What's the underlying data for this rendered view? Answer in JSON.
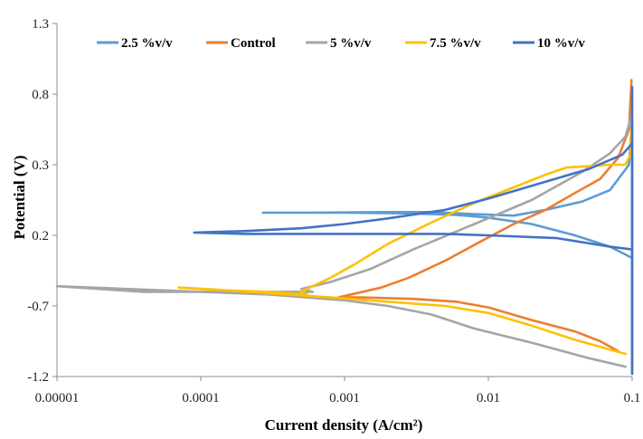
{
  "chart_data": {
    "type": "line",
    "xlabel": "Current density (A/cm²)",
    "ylabel": "Potential (V)",
    "x_scale": "log",
    "xlim": [
      1e-05,
      0.1
    ],
    "ylim": [
      -1.2,
      1.3
    ],
    "x_ticks": [
      1e-05,
      0.0001,
      0.001,
      0.01,
      0.1
    ],
    "x_tick_labels": [
      "0.00001",
      "0.0001",
      "0.001",
      "0.01",
      "0.1"
    ],
    "y_ticks": [
      1.3,
      0.8,
      0.3,
      0.2,
      -0.7,
      -1.2
    ],
    "y_tick_labels": [
      "1.3",
      "0.8",
      "0.3",
      "0.2",
      "-0.7",
      "-1.2"
    ],
    "grid": false,
    "legend_position": "top",
    "series": [
      {
        "name": "2.5 %v/v",
        "color": "#5B9BD5",
        "points": [
          [
            0.1,
            -1.18
          ],
          [
            0.1,
            -0.05
          ],
          [
            0.1,
            0.45
          ],
          [
            0.1,
            0.62
          ],
          [
            0.095,
            0.3
          ],
          [
            0.07,
            0.12
          ],
          [
            0.045,
            0.04
          ],
          [
            0.025,
            -0.02
          ],
          [
            0.015,
            -0.06
          ],
          [
            0.008,
            -0.05
          ],
          [
            0.004,
            -0.035
          ],
          [
            0.002,
            -0.035
          ],
          [
            0.001,
            -0.038
          ],
          [
            0.0005,
            -0.04
          ],
          [
            0.00027,
            -0.04
          ],
          [
            0.001,
            -0.04
          ],
          [
            0.003,
            -0.045
          ],
          [
            0.006,
            -0.055
          ],
          [
            0.01,
            -0.075
          ],
          [
            0.02,
            -0.12
          ],
          [
            0.04,
            -0.2
          ],
          [
            0.07,
            -0.28
          ],
          [
            0.1,
            -0.36
          ]
        ]
      },
      {
        "name": "Control",
        "color": "#ED7D31",
        "points": [
          [
            0.099,
            0.9
          ],
          [
            0.095,
            0.55
          ],
          [
            0.08,
            0.35
          ],
          [
            0.06,
            0.2
          ],
          [
            0.04,
            0.1
          ],
          [
            0.025,
            -0.02
          ],
          [
            0.015,
            -0.12
          ],
          [
            0.009,
            -0.24
          ],
          [
            0.005,
            -0.38
          ],
          [
            0.0028,
            -0.5
          ],
          [
            0.0018,
            -0.57
          ],
          [
            0.0011,
            -0.62
          ],
          [
            0.0009,
            -0.64
          ],
          [
            0.0013,
            -0.64
          ],
          [
            0.003,
            -0.65
          ],
          [
            0.006,
            -0.67
          ],
          [
            0.01,
            -0.71
          ],
          [
            0.02,
            -0.8
          ],
          [
            0.04,
            -0.88
          ],
          [
            0.06,
            -0.95
          ],
          [
            0.08,
            -1.02
          ]
        ]
      },
      {
        "name": "5 %v/v",
        "color": "#A5A5A5",
        "points": [
          [
            0.099,
            0.65
          ],
          [
            0.09,
            0.5
          ],
          [
            0.07,
            0.38
          ],
          [
            0.045,
            0.25
          ],
          [
            0.02,
            0.05
          ],
          [
            0.008,
            -0.12
          ],
          [
            0.003,
            -0.3
          ],
          [
            0.0015,
            -0.44
          ],
          [
            0.0008,
            -0.53
          ],
          [
            0.0005,
            -0.58
          ],
          [
            0.0006,
            -0.6
          ],
          [
            0.0004,
            -0.6
          ],
          [
            0.0002,
            -0.6
          ],
          [
            4e-05,
            -0.6
          ],
          [
            1e-05,
            -0.56
          ],
          [
            0.0001,
            -0.6
          ],
          [
            0.0003,
            -0.62
          ],
          [
            0.001,
            -0.66
          ],
          [
            0.002,
            -0.7
          ],
          [
            0.004,
            -0.76
          ],
          [
            0.008,
            -0.86
          ],
          [
            0.02,
            -0.96
          ],
          [
            0.05,
            -1.07
          ],
          [
            0.09,
            -1.13
          ]
        ]
      },
      {
        "name": "7.5 %v/v",
        "color": "#FFC000",
        "points": [
          [
            0.099,
            0.55
          ],
          [
            0.097,
            0.37
          ],
          [
            0.09,
            0.3
          ],
          [
            0.07,
            0.3
          ],
          [
            0.05,
            0.29
          ],
          [
            0.035,
            0.28
          ],
          [
            0.025,
            0.23
          ],
          [
            0.015,
            0.14
          ],
          [
            0.008,
            0.03
          ],
          [
            0.004,
            -0.11
          ],
          [
            0.002,
            -0.26
          ],
          [
            0.0012,
            -0.4
          ],
          [
            0.0008,
            -0.5
          ],
          [
            0.0006,
            -0.56
          ],
          [
            0.0005,
            -0.6
          ],
          [
            0.00055,
            -0.62
          ],
          [
            0.0003,
            -0.6
          ],
          [
            0.00015,
            -0.59
          ],
          [
            0.0001,
            -0.58
          ],
          [
            7e-05,
            -0.57
          ],
          [
            0.00011,
            -0.58
          ],
          [
            0.0003,
            -0.61
          ],
          [
            0.0008,
            -0.64
          ],
          [
            0.002,
            -0.67
          ],
          [
            0.005,
            -0.7
          ],
          [
            0.01,
            -0.75
          ],
          [
            0.02,
            -0.84
          ],
          [
            0.04,
            -0.94
          ],
          [
            0.09,
            -1.04
          ]
        ]
      },
      {
        "name": "10 %v/v",
        "color": "#4472C4",
        "points": [
          [
            0.1,
            -1.18
          ],
          [
            0.1,
            0.0
          ],
          [
            0.1,
            0.5
          ],
          [
            0.1,
            0.85
          ],
          [
            0.1,
            0.55
          ],
          [
            0.1,
            0.45
          ],
          [
            0.085,
            0.37
          ],
          [
            0.05,
            0.27
          ],
          [
            0.025,
            0.18
          ],
          [
            0.01,
            0.06
          ],
          [
            0.005,
            -0.02
          ],
          [
            0.002,
            -0.08
          ],
          [
            0.001,
            -0.12
          ],
          [
            0.0005,
            -0.15
          ],
          [
            0.0002,
            -0.17
          ],
          [
            9e-05,
            -0.18
          ],
          [
            0.0002,
            -0.19
          ],
          [
            0.001,
            -0.19
          ],
          [
            0.005,
            -0.19
          ],
          [
            0.01,
            -0.2
          ],
          [
            0.03,
            -0.22
          ],
          [
            0.07,
            -0.28
          ],
          [
            0.1,
            -0.3
          ]
        ]
      }
    ]
  }
}
